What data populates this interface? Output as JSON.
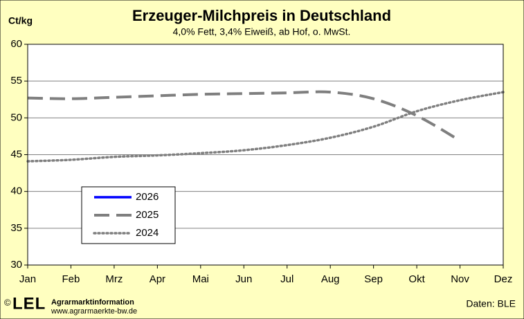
{
  "chart_data": {
    "type": "line",
    "title": "Erzeuger-Milchpreis in Deutschland",
    "subtitle": "4,0% Fett, 3,4% Eiweiß, ab Hof, o. MwSt.",
    "y_label": "Ct/kg",
    "categories": [
      "Jan",
      "Feb",
      "Mrz",
      "Apr",
      "Mai",
      "Jun",
      "Jul",
      "Aug",
      "Sep",
      "Okt",
      "Nov",
      "Dez"
    ],
    "series": [
      {
        "name": "2026",
        "color": "#0000ff",
        "style": "solid",
        "values": [
          null,
          null,
          null,
          null,
          null,
          null,
          null,
          null,
          null,
          null,
          null,
          null
        ]
      },
      {
        "name": "2025",
        "color": "#7f7f7f",
        "style": "dashed",
        "values": [
          52.7,
          52.6,
          52.8,
          53.0,
          53.2,
          53.3,
          53.4,
          53.5,
          52.6,
          50.3,
          46.9,
          null
        ]
      },
      {
        "name": "2024",
        "color": "#7f7f7f",
        "style": "dotted",
        "values": [
          44.1,
          44.3,
          44.7,
          44.9,
          45.2,
          45.6,
          46.3,
          47.3,
          48.8,
          50.9,
          52.4,
          53.5
        ]
      }
    ],
    "ylim": [
      30,
      60
    ],
    "yticks": [
      30,
      35,
      40,
      45,
      50,
      55,
      60
    ],
    "grid": true,
    "footer": {
      "copyright": "©",
      "logo": "LEL",
      "org": "Agrarmarktinformation",
      "url": "www.agrarmaerkte-bw.de",
      "source": "Daten: BLE"
    }
  }
}
